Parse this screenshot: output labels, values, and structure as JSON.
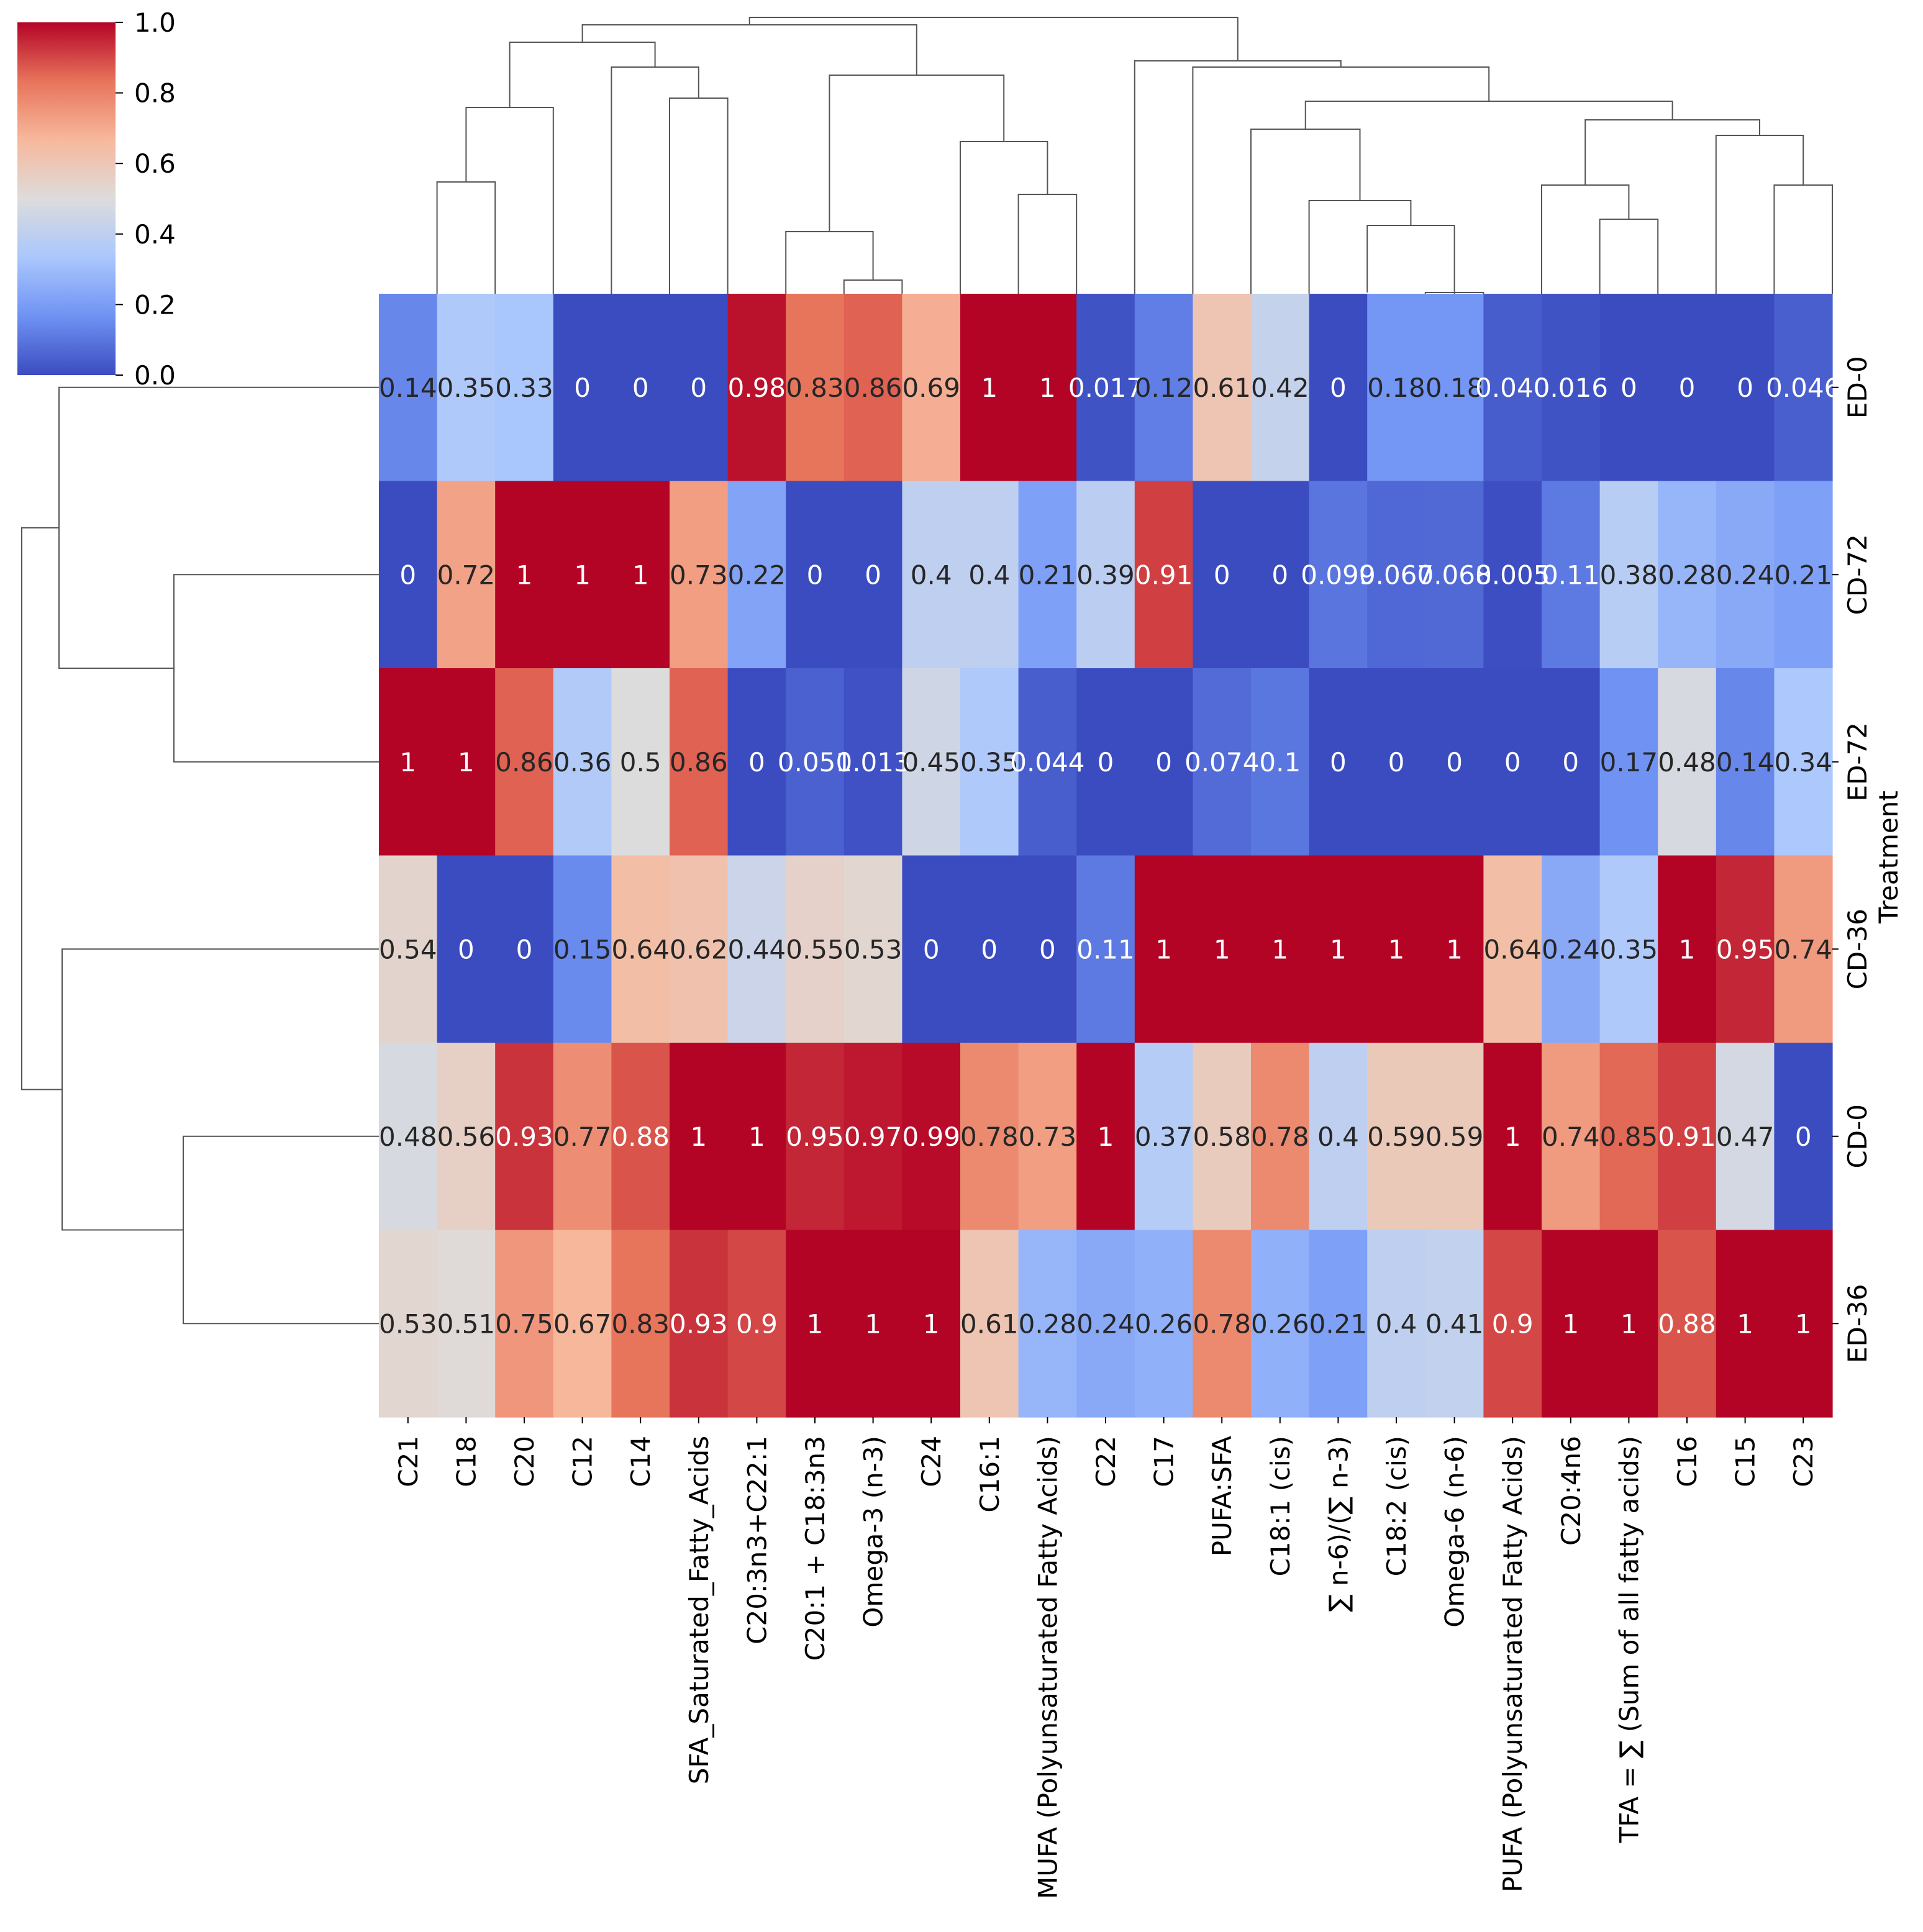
{
  "chart_data": {
    "type": "heatmap",
    "title": "",
    "ylabel": "Treatment",
    "xlabel": "",
    "colormap": "coolwarm",
    "colormap_stops": [
      "#3b4cc0",
      "#6f92f3",
      "#aac7fd",
      "#dddcdc",
      "#f7b89c",
      "#e7745b",
      "#b40426"
    ],
    "value_range": [
      0,
      1
    ],
    "colorbar_ticks": [
      "0.0",
      "0.2",
      "0.4",
      "0.6",
      "0.8",
      "1.0"
    ],
    "columns": [
      "C21",
      "C18",
      "C20",
      "C12",
      "C14",
      "SFA_Saturated_Fatty_Acids",
      "C20:3n3+C22:1",
      "C20:1 + C18:3n3",
      "Omega-3 (n-3)",
      "C24",
      "C16:1",
      "MUFA (Polyunsaturated Fatty Acids)",
      "C22",
      "C17",
      "PUFA:SFA",
      "C18:1 (cis)",
      "∑ n-6)/(∑ n-3)",
      "C18:2 (cis)",
      "Omega-6 (n-6)",
      "PUFA (Polyunsaturated Fatty Acids)",
      "C20:4n6",
      "TFA = ∑ (Sum of all fatty acids)",
      "C16",
      "C15",
      "C23"
    ],
    "rows": [
      "ED-0",
      "CD-72",
      "ED-72",
      "CD-36",
      "CD-0",
      "ED-36"
    ],
    "values": [
      [
        0.14,
        0.35,
        0.33,
        0,
        0,
        0,
        0.98,
        0.83,
        0.86,
        0.69,
        1,
        1,
        0.017,
        0.12,
        0.61,
        0.42,
        0,
        0.18,
        0.18,
        0.04,
        0.016,
        0,
        0,
        0,
        0.046
      ],
      [
        0,
        0.72,
        1,
        1,
        1,
        0.73,
        0.22,
        0,
        0,
        0.4,
        0.4,
        0.21,
        0.39,
        0.91,
        0,
        0,
        0.099,
        0.067,
        0.068,
        0.005,
        0.11,
        0.38,
        0.28,
        0.24,
        0.21
      ],
      [
        1,
        1,
        0.86,
        0.36,
        0.5,
        0.86,
        0,
        0.051,
        0.013,
        0.45,
        0.35,
        0.044,
        0,
        0,
        0.074,
        0.1,
        0,
        0,
        0,
        0,
        0,
        0.17,
        0.48,
        0.14,
        0.34
      ],
      [
        0.54,
        0,
        0,
        0.15,
        0.64,
        0.62,
        0.44,
        0.55,
        0.53,
        0,
        0,
        0,
        0.11,
        1,
        1,
        1,
        1,
        1,
        1,
        0.64,
        0.24,
        0.35,
        1,
        0.95,
        0.74
      ],
      [
        0.48,
        0.56,
        0.93,
        0.77,
        0.88,
        1,
        1,
        0.95,
        0.97,
        0.99,
        0.78,
        0.73,
        1,
        0.37,
        0.58,
        0.78,
        0.4,
        0.59,
        0.59,
        1,
        0.74,
        0.85,
        0.91,
        0.47,
        0
      ],
      [
        0.53,
        0.51,
        0.75,
        0.67,
        0.83,
        0.93,
        0.9,
        1,
        1,
        1,
        0.61,
        0.28,
        0.24,
        0.26,
        0.78,
        0.26,
        0.21,
        0.4,
        0.41,
        0.9,
        1,
        1,
        0.88,
        1,
        1
      ]
    ],
    "annotations": [
      [
        "0.14",
        "0.35",
        "0.33",
        "0",
        "0",
        "0",
        "0.98",
        "0.83",
        "0.86",
        "0.69",
        "1",
        "1",
        "0.017",
        "0.12",
        "0.61",
        "0.42",
        "0",
        "0.18",
        "0.18",
        "0.040",
        "0.016",
        "0",
        "0",
        "0",
        "0.046"
      ],
      [
        "0",
        "0.72",
        "1",
        "1",
        "1",
        "0.73",
        "0.22",
        "0",
        "0",
        "0.4",
        "0.4",
        "0.21",
        "0.39",
        "0.91",
        "0",
        "0",
        "0.099",
        "0.067",
        "0.068",
        "0.005",
        "0.11",
        "0.38",
        "0.28",
        "0.24",
        "0.21"
      ],
      [
        "1",
        "1",
        "0.86",
        "0.36",
        "0.5",
        "0.86",
        "0",
        "0.051",
        "0.013",
        "0.45",
        "0.35",
        "0.044",
        "0",
        "0",
        "0.074",
        "0.1",
        "0",
        "0",
        "0",
        "0",
        "0",
        "0.17",
        "0.48",
        "0.14",
        "0.34"
      ],
      [
        "0.54",
        "0",
        "0",
        "0.15",
        "0.64",
        "0.62",
        "0.44",
        "0.55",
        "0.53",
        "0",
        "0",
        "0",
        "0.11",
        "1",
        "1",
        "1",
        "1",
        "1",
        "1",
        "0.64",
        "0.24",
        "0.35",
        "1",
        "0.95",
        "0.74"
      ],
      [
        "0.48",
        "0.56",
        "0.93",
        "0.77",
        "0.88",
        "1",
        "1",
        "0.95",
        "0.97",
        "0.99",
        "0.78",
        "0.73",
        "1",
        "0.37",
        "0.58",
        "0.78",
        "0.4",
        "0.59",
        "0.59",
        "1",
        "0.74",
        "0.85",
        "0.91",
        "0.47",
        "0"
      ],
      [
        "0.53",
        "0.51",
        "0.75",
        "0.67",
        "0.83",
        "0.93",
        "0.9",
        "1",
        "1",
        "1",
        "0.61",
        "0.28",
        "0.24",
        "0.26",
        "0.78",
        "0.26",
        "0.21",
        "0.4",
        "0.41",
        "0.9",
        "1",
        "1",
        "0.88",
        "1",
        "1"
      ]
    ],
    "column_dendrogram": {
      "type": "hierarchical clustering",
      "order": [
        "C21",
        "C18",
        "C20",
        "C12",
        "C14",
        "SFA_Saturated_Fatty_Acids",
        "C20:3n3+C22:1",
        "C20:1 + C18:3n3",
        "Omega-3 (n-3)",
        "C24",
        "C16:1",
        "MUFA (Polyunsaturated Fatty Acids)",
        "C22",
        "C17",
        "PUFA:SFA",
        "C18:1 (cis)",
        "∑ n-6)/(∑ n-3)",
        "C18:2 (cis)",
        "Omega-6 (n-6)",
        "PUFA (Polyunsaturated Fatty Acids)",
        "C20:4n6",
        "TFA = ∑ (Sum of all fatty acids)",
        "C16",
        "C15",
        "C23"
      ]
    },
    "row_dendrogram": {
      "type": "hierarchical clustering",
      "order": [
        "ED-0",
        "CD-72",
        "ED-72",
        "CD-36",
        "CD-0",
        "ED-36"
      ]
    }
  }
}
